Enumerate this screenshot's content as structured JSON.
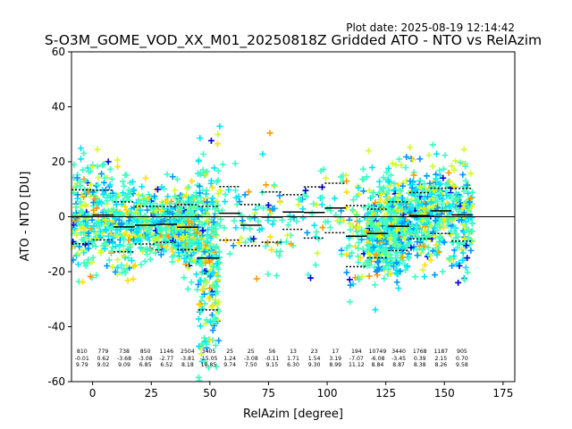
{
  "header": {
    "plot_date": "Plot date: 2025-08-19 12:14:42",
    "title": "S-O3M_GOME_VOD_XX_M01_20250818Z Gridded ATO - NTO vs RelAzim"
  },
  "chart_data": {
    "type": "scatter",
    "title": "S-O3M_GOME_VOD_XX_M01_20250818Z Gridded ATO - NTO vs RelAzim",
    "xlabel": "RelAzim [degree]",
    "ylabel": "ATO - NTO [DU]",
    "xlim": [
      -9,
      180
    ],
    "ylim": [
      -60,
      60
    ],
    "xticks": [
      0,
      25,
      50,
      75,
      100,
      125,
      150,
      175
    ],
    "yticks": [
      -60,
      -40,
      -20,
      0,
      20,
      40,
      60
    ],
    "marker": "+",
    "marker_colors": [
      "#0000dd",
      "#0095ff",
      "#00e4ff",
      "#3dffc2",
      "#ceff29",
      "#ffe000",
      "#ff9a00"
    ],
    "zero_line": true,
    "bins": [
      {
        "center": -4.5,
        "lo": -9,
        "hi": 0,
        "n": "810",
        "mean": "-0.01",
        "std": "9.79"
      },
      {
        "center": 4.5,
        "lo": 0,
        "hi": 9,
        "n": "779",
        "mean": "0.62",
        "std": "9.02"
      },
      {
        "center": 13.5,
        "lo": 9,
        "hi": 18,
        "n": "738",
        "mean": "-3.68",
        "std": "9.09"
      },
      {
        "center": 22.5,
        "lo": 18,
        "hi": 27,
        "n": "850",
        "mean": "-3.08",
        "std": "6.85"
      },
      {
        "center": 31.5,
        "lo": 27,
        "hi": 36,
        "n": "1146",
        "mean": "-2.77",
        "std": "6.52"
      },
      {
        "center": 40.5,
        "lo": 36,
        "hi": 45,
        "n": "2504",
        "mean": "-3.81",
        "std": "8.18"
      },
      {
        "center": 49.5,
        "lo": 45,
        "hi": 54,
        "n": "3405",
        "mean": "-15.05",
        "std": "18.85"
      },
      {
        "center": 58.5,
        "lo": 54,
        "hi": 63,
        "n": "25",
        "mean": "1.24",
        "std": "9.74"
      },
      {
        "center": 67.5,
        "lo": 63,
        "hi": 72,
        "n": "25",
        "mean": "-3.08",
        "std": "7.50"
      },
      {
        "center": 76.5,
        "lo": 72,
        "hi": 81,
        "n": "56",
        "mean": "-0.11",
        "std": "9.15"
      },
      {
        "center": 85.5,
        "lo": 81,
        "hi": 90,
        "n": "13",
        "mean": "1.71",
        "std": "6.30"
      },
      {
        "center": 94.5,
        "lo": 90,
        "hi": 99,
        "n": "23",
        "mean": "1.54",
        "std": "9.30"
      },
      {
        "center": 103.5,
        "lo": 99,
        "hi": 108,
        "n": "17",
        "mean": "3.19",
        "std": "8.99"
      },
      {
        "center": 112.5,
        "lo": 108,
        "hi": 117,
        "n": "194",
        "mean": "-7.07",
        "std": "11.12"
      },
      {
        "center": 121.5,
        "lo": 117,
        "hi": 126,
        "n": "10749",
        "mean": "-6.08",
        "std": "8.84"
      },
      {
        "center": 130.5,
        "lo": 126,
        "hi": 135,
        "n": "3440",
        "mean": "-3.45",
        "std": "8.87"
      },
      {
        "center": 139.5,
        "lo": 135,
        "hi": 144,
        "n": "1768",
        "mean": "0.39",
        "std": "8.38"
      },
      {
        "center": 148.5,
        "lo": 144,
        "hi": 153,
        "n": "1187",
        "mean": "2.15",
        "std": "8.26"
      },
      {
        "center": 157.5,
        "lo": 153,
        "hi": 162,
        "n": "905",
        "mean": "0.70",
        "std": "9.58"
      }
    ]
  }
}
